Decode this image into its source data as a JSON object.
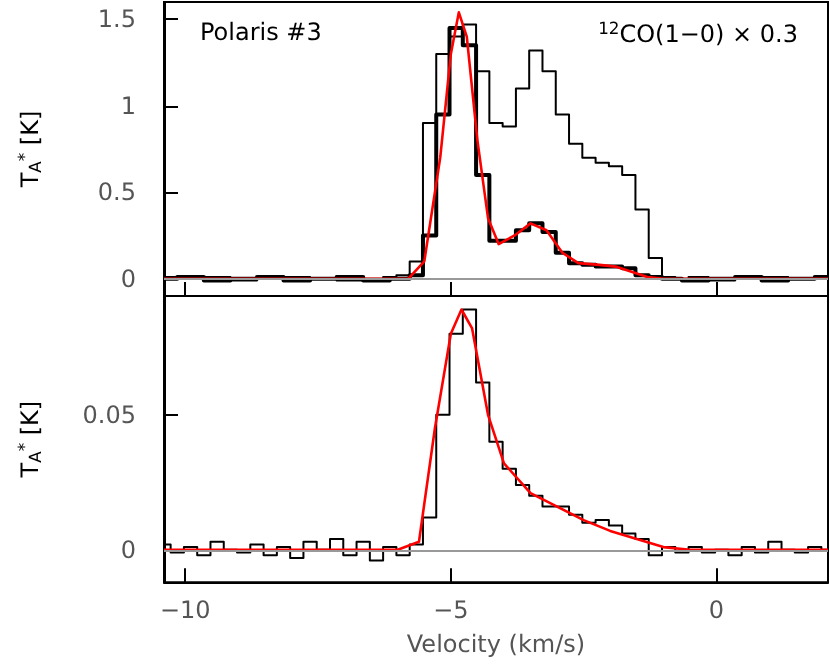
{
  "chart_data": [
    {
      "type": "step",
      "ylabel": "T$_{A}$$^{*}$ [K]",
      "xlim": [
        -10.4,
        2.1
      ],
      "xticks": [
        -10,
        -5,
        0
      ],
      "ylim": [
        -0.1,
        1.6
      ],
      "yticks": [
        0,
        0.5,
        1,
        1.5
      ],
      "tick_labels": "y",
      "grid": false,
      "annotations": [
        "Polaris #3",
        "$^{12}$CO(1−0) × 0.3"
      ],
      "ref_lines": [
        {
          "axis": "y",
          "value": 0,
          "color": "#999999"
        }
      ],
      "series": [
        {
          "color": "#000000",
          "x": [
            -10.4,
            -9.9,
            -9.4,
            -8.9,
            -8.4,
            -7.9,
            -7.4,
            -6.9,
            -6.4,
            -6.15,
            -5.9,
            -5.65,
            -5.4,
            -5.15,
            -4.9,
            -4.65,
            -4.4,
            -4.15,
            -3.9,
            -3.65,
            -3.4,
            -3.15,
            -2.9,
            -2.65,
            -2.4,
            -2.15,
            -1.9,
            -1.65,
            -1.4,
            -1.15,
            -0.9,
            -0.65,
            -0.4,
            0.1,
            0.6,
            1.1,
            1.6,
            2.1
          ],
          "values": [
            0.01,
            0,
            0.01,
            -0.01,
            0,
            0.01,
            0,
            -0.01,
            0,
            0.01,
            0.02,
            0.1,
            0.9,
            1.3,
            1.4,
            1.47,
            1.2,
            0.9,
            0.88,
            1.1,
            1.32,
            1.2,
            0.95,
            0.78,
            0.7,
            0.67,
            0.65,
            0.6,
            0.4,
            0.12,
            0.01,
            0,
            0.01,
            -0.01,
            0,
            0.01,
            0,
            0.01
          ]
        },
        {
          "color": "#000000",
          "x": [
            -10.4,
            -9.9,
            -9.4,
            -8.9,
            -8.4,
            -7.9,
            -7.4,
            -6.9,
            -6.4,
            -5.9,
            -5.65,
            -5.4,
            -5.15,
            -4.9,
            -4.65,
            -4.4,
            -4.15,
            -3.9,
            -3.65,
            -3.4,
            -3.15,
            -2.9,
            -2.65,
            -2.4,
            -2.15,
            -1.9,
            -1.65,
            -1.4,
            -1.15,
            -0.9,
            -0.4,
            0.1,
            0.6,
            1.1,
            1.6,
            2.1
          ],
          "values": [
            0,
            0.01,
            -0.01,
            0,
            0.01,
            -0.01,
            0,
            0.01,
            -0.01,
            0,
            0.02,
            0.25,
            0.95,
            1.45,
            1.35,
            0.6,
            0.22,
            0.22,
            0.28,
            0.32,
            0.27,
            0.15,
            0.09,
            0.08,
            0.07,
            0.07,
            0.06,
            0.02,
            0.01,
            0,
            -0.01,
            0,
            0.01,
            -0.01,
            0,
            0.01
          ]
        },
        {
          "type": "line",
          "color": "#ff0000",
          "x": [
            -10.4,
            -5.8,
            -5.5,
            -5.2,
            -5.0,
            -4.85,
            -4.7,
            -4.5,
            -4.3,
            -4.1,
            -3.8,
            -3.5,
            -3.2,
            -2.9,
            -2.6,
            -2.2,
            -1.9,
            -1.6,
            -1.3,
            -1.0,
            2.1
          ],
          "values": [
            0,
            0,
            0.1,
            0.7,
            1.3,
            1.54,
            1.4,
            0.8,
            0.35,
            0.2,
            0.25,
            0.32,
            0.28,
            0.15,
            0.09,
            0.08,
            0.07,
            0.04,
            0.01,
            0,
            0
          ]
        }
      ]
    },
    {
      "type": "step",
      "ylabel": "T$_{A}$$^{*}$ [K]",
      "xlabel": "Velocity (km/s)",
      "xlim": [
        -10.4,
        2.1
      ],
      "xticks": [
        -10,
        -5,
        0
      ],
      "ylim": [
        -0.012,
        0.094
      ],
      "yticks": [
        0,
        0.05
      ],
      "grid": false,
      "ref_lines": [
        {
          "axis": "y",
          "value": 0,
          "color": "#999999"
        }
      ],
      "series": [
        {
          "color": "#000000",
          "x": [
            -10.4,
            -10.15,
            -9.9,
            -9.65,
            -9.4,
            -9.15,
            -8.9,
            -8.65,
            -8.4,
            -8.15,
            -7.9,
            -7.65,
            -7.4,
            -7.15,
            -6.9,
            -6.65,
            -6.4,
            -6.15,
            -5.9,
            -5.65,
            -5.4,
            -5.15,
            -4.9,
            -4.65,
            -4.4,
            -4.15,
            -3.9,
            -3.65,
            -3.4,
            -3.15,
            -2.9,
            -2.65,
            -2.4,
            -2.15,
            -1.9,
            -1.65,
            -1.4,
            -1.15,
            -0.9,
            -0.65,
            -0.4,
            -0.15,
            0.1,
            0.35,
            0.6,
            0.85,
            1.1,
            1.35,
            1.6,
            1.85,
            2.1
          ],
          "values": [
            0.002,
            -0.001,
            0.001,
            -0.002,
            0.003,
            0,
            -0.001,
            0.002,
            -0.002,
            0.001,
            -0.003,
            0.003,
            0,
            0.004,
            -0.002,
            0.003,
            -0.004,
            0.001,
            -0.002,
            0.002,
            0.012,
            0.05,
            0.08,
            0.089,
            0.062,
            0.04,
            0.03,
            0.024,
            0.02,
            0.016,
            0.016,
            0.013,
            0.01,
            0.011,
            0.009,
            0.006,
            0.004,
            -0.002,
            0.001,
            -0.001,
            0.001,
            -0.001,
            0,
            -0.002,
            0.001,
            -0.001,
            0.003,
            0,
            -0.001,
            0.001,
            0
          ]
        },
        {
          "type": "line",
          "color": "#ff0000",
          "x": [
            -10.4,
            -6,
            -5.6,
            -5.3,
            -5,
            -4.8,
            -4.6,
            -4.3,
            -4,
            -3.5,
            -3,
            -2.5,
            -2,
            -1.5,
            -1,
            -0.5,
            2.1
          ],
          "values": [
            0,
            0,
            0.003,
            0.045,
            0.08,
            0.089,
            0.082,
            0.05,
            0.032,
            0.021,
            0.016,
            0.011,
            0.007,
            0.004,
            0.001,
            0,
            0
          ]
        }
      ]
    }
  ]
}
